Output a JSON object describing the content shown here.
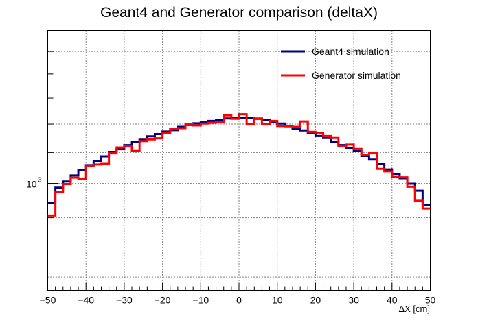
{
  "chart_data": {
    "type": "line",
    "title": "Geant4 and Generator comparison (deltaX)",
    "xlabel": "ΔX [cm]",
    "ylabel": "",
    "xlim": [
      -50,
      50
    ],
    "ylim": [
      720,
      1600
    ],
    "yscale": "log",
    "grid": true,
    "legend_position": "top-right",
    "x_ticks": [
      "−50",
      "−40",
      "−30",
      "−20",
      "−10",
      "0",
      "10",
      "20",
      "30",
      "40",
      "50"
    ],
    "x_tick_values": [
      -50,
      -40,
      -30,
      -20,
      -10,
      0,
      10,
      20,
      30,
      40,
      50
    ],
    "y_tick_label": {
      "base": "10",
      "exponent": "3",
      "value": 1000
    },
    "y_minor_ticks": [
      800,
      900,
      2000
    ],
    "bin_edges": [
      -50,
      -48,
      -46,
      -44,
      -42,
      -40,
      -38,
      -36,
      -34,
      -32,
      -30,
      -28,
      -26,
      -24,
      -22,
      -20,
      -18,
      -16,
      -14,
      -12,
      -10,
      -8,
      -6,
      -4,
      -2,
      0,
      2,
      4,
      6,
      8,
      10,
      12,
      14,
      16,
      18,
      20,
      22,
      24,
      26,
      28,
      30,
      32,
      34,
      36,
      38,
      40,
      42,
      44,
      46,
      48,
      50
    ],
    "series": [
      {
        "name": "Geant4 simulation",
        "color": "#00007f",
        "values": [
          943,
          987,
          1006,
          1025,
          1041,
          1058,
          1070,
          1087,
          1102,
          1111,
          1125,
          1137,
          1144,
          1156,
          1164,
          1173,
          1178,
          1190,
          1197,
          1203,
          1208,
          1212,
          1216,
          1221,
          1223,
          1224,
          1223,
          1220,
          1214,
          1207,
          1202,
          1193,
          1182,
          1177,
          1167,
          1157,
          1150,
          1135,
          1125,
          1116,
          1105,
          1088,
          1076,
          1061,
          1044,
          1030,
          1016,
          999,
          978,
          935
        ]
      },
      {
        "name": "Generator simulation",
        "color": "#ff0000",
        "values": [
          906,
          974,
          998,
          1018,
          1015,
          1055,
          1060,
          1062,
          1097,
          1117,
          1122,
          1105,
          1139,
          1145,
          1149,
          1167,
          1183,
          1185,
          1201,
          1195,
          1202,
          1205,
          1208,
          1233,
          1220,
          1237,
          1201,
          1221,
          1200,
          1212,
          1193,
          1192,
          1190,
          1210,
          1172,
          1169,
          1157,
          1150,
          1123,
          1127,
          1112,
          1092,
          1099,
          1046,
          1038,
          1020,
          1019,
          990,
          948,
          926
        ]
      }
    ]
  }
}
